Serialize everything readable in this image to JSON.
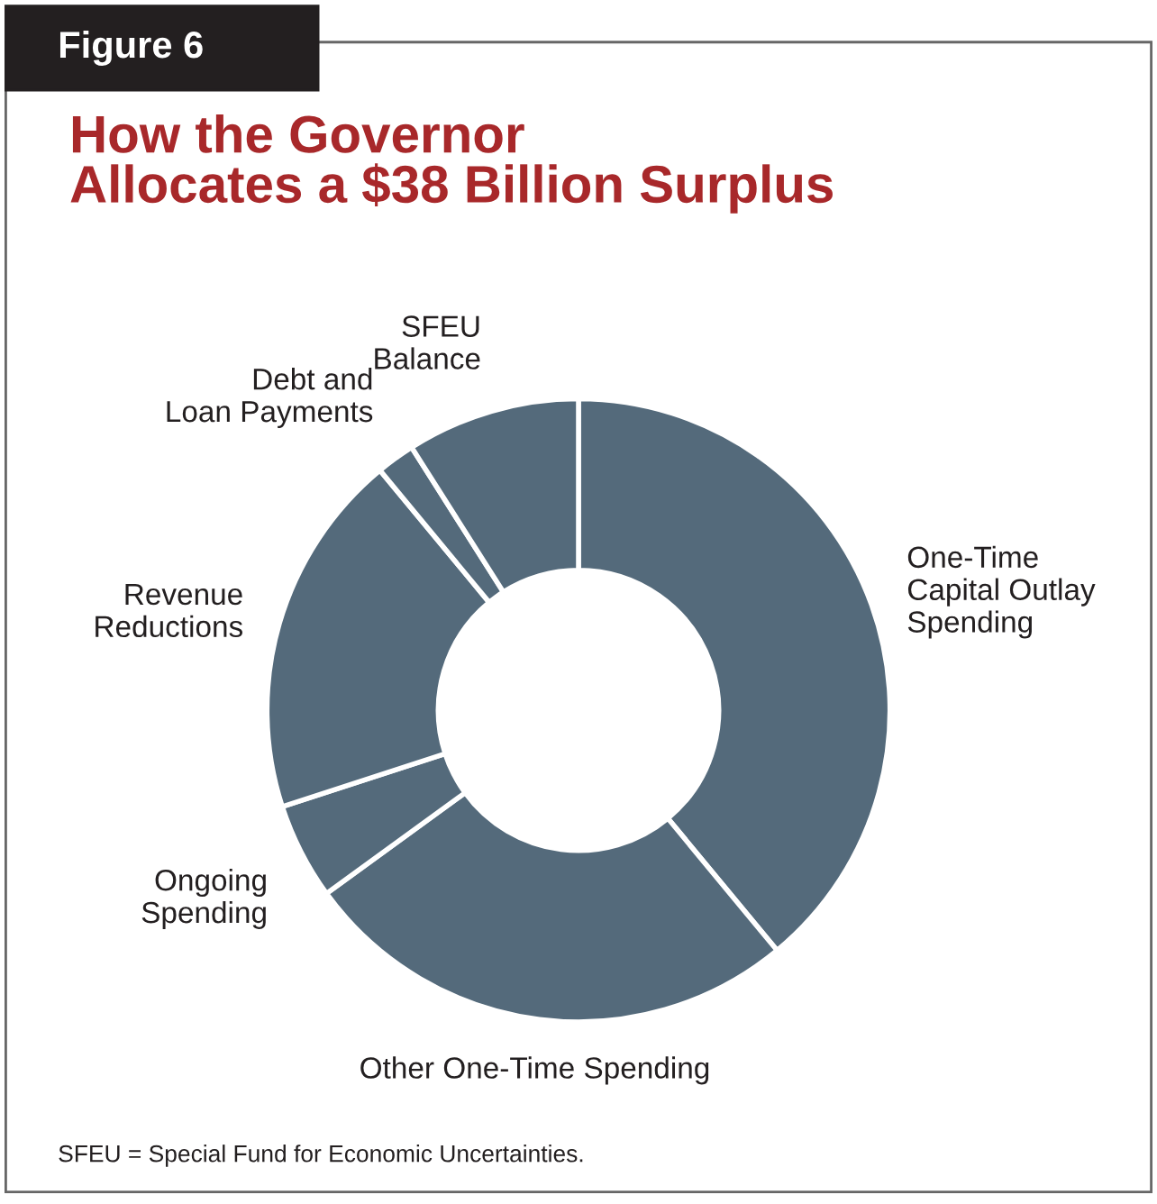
{
  "chart_data": {
    "type": "donut",
    "subtitle": "Figure 6",
    "title": "How the Governor\nAllocates a $38 Billion Surplus",
    "categories": [
      "One-Time\nCapital Outlay\nSpending",
      "Other One-Time Spending",
      "Ongoing\nSpending",
      "Revenue\nReductions",
      "Debt and\nLoan Payments",
      "SFEU\nBalance"
    ],
    "values": [
      39,
      26,
      5,
      19,
      2,
      9
    ],
    "colors": [
      "#546a7b",
      "#546a7b",
      "#546a7b",
      "#546a7b",
      "#546a7b",
      "#546a7b"
    ],
    "annotations": [
      "SFEU = Special Fund for Economic Uncertainties."
    ]
  }
}
